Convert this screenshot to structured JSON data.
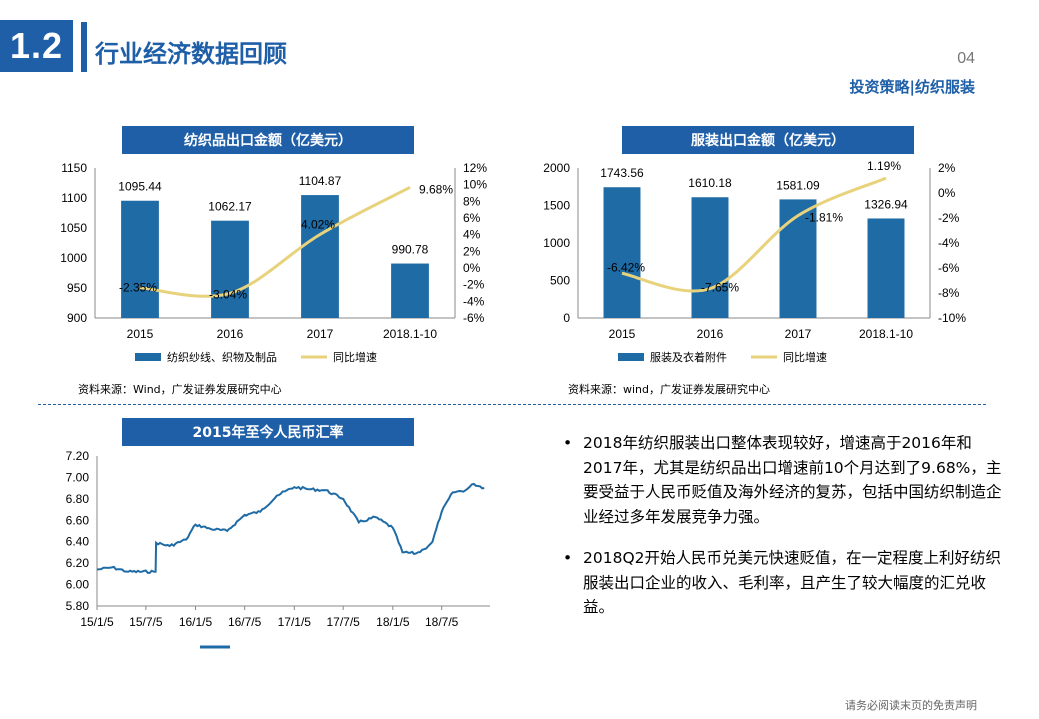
{
  "section": {
    "number": "1.2",
    "title": "行业经济数据回顾"
  },
  "page_number": "04",
  "header_subtitle": "投资策略|纺织服装",
  "charts": {
    "textile": {
      "title": "纺织品出口金额（亿美元）",
      "source": "资料来源：Wind，广发证券发展研究中心"
    },
    "apparel": {
      "title": "服装出口金额（亿美元）",
      "source": "资料来源：wind，广发证券发展研究中心"
    },
    "rmb": {
      "title": "2015年至今人民币汇率"
    }
  },
  "bullets": [
    "2018年纺织服装出口整体表现较好，增速高于2016年和2017年，尤其是纺织品出口增速前10个月达到了9.68%，主要受益于人民币贬值及海外经济的复苏，包括中国纺织制造企业经过多年发展竞争力强。",
    "2018Q2开始人民币兑美元快速贬值，在一定程度上利好纺织服装出口企业的收入、毛利率，且产生了较大幅度的汇兑收益。"
  ],
  "disclaimer": "请务必阅读末页的免责声明",
  "colors": {
    "brand": "#1f5fa8",
    "bar": "#1f6ba5",
    "line": "#e8d27c",
    "fx_line": "#1f6ba5"
  },
  "chart_data": [
    {
      "type": "bar",
      "title": "纺织品出口金额（亿美元）",
      "categories": [
        "2015",
        "2016",
        "2017",
        "2018.1-10"
      ],
      "series": [
        {
          "name": "纺织纱线、织物及制品",
          "values": [
            1095.44,
            1062.17,
            1104.87,
            990.78
          ],
          "labels": [
            "1095.44",
            "1062.17",
            "1104.87",
            "990.78"
          ]
        },
        {
          "name": "同比增速",
          "values": [
            -2.35,
            -3.04,
            4.02,
            9.68
          ],
          "labels": [
            "-2.35%",
            "-3.04%",
            "4.02%",
            "9.68%"
          ],
          "axis": "right",
          "line": true
        }
      ],
      "ylim": [
        900,
        1150
      ],
      "yticks": [
        "900",
        "950",
        "1000",
        "1050",
        "1100",
        "1150"
      ],
      "y2lim": [
        -6,
        12
      ],
      "y2ticks": [
        "-6%",
        "-4%",
        "-2%",
        "0%",
        "2%",
        "4%",
        "6%",
        "8%",
        "10%",
        "12%"
      ],
      "legend": "bottom"
    },
    {
      "type": "bar",
      "title": "服装出口金额（亿美元）",
      "categories": [
        "2015",
        "2016",
        "2017",
        "2018.1-10"
      ],
      "series": [
        {
          "name": "服装及衣着附件",
          "values": [
            1743.56,
            1610.18,
            1581.09,
            1326.94
          ],
          "labels": [
            "1743.56",
            "1610.18",
            "1581.09",
            "1326.94"
          ]
        },
        {
          "name": "同比增速",
          "values": [
            -6.42,
            -7.65,
            -1.81,
            1.19
          ],
          "labels": [
            "-6.42%",
            "-7.65%",
            "-1.81%",
            "1.19%"
          ],
          "axis": "right",
          "line": true
        }
      ],
      "ylim": [
        0,
        2000
      ],
      "yticks": [
        "0",
        "500",
        "1000",
        "1500",
        "2000"
      ],
      "y2lim": [
        -10,
        2
      ],
      "y2ticks": [
        "-10%",
        "-8%",
        "-6%",
        "-4%",
        "-2%",
        "0%",
        "2%"
      ],
      "legend": "bottom"
    },
    {
      "type": "line",
      "title": "2015年至今人民币汇率",
      "ylim": [
        5.8,
        7.2
      ],
      "yticks": [
        "5.80",
        "6.00",
        "6.20",
        "6.40",
        "6.60",
        "6.80",
        "7.00",
        "7.20"
      ],
      "xticks": [
        "15/1/5",
        "15/7/5",
        "16/1/5",
        "16/7/5",
        "17/1/5",
        "17/7/5",
        "18/1/5",
        "18/7/5"
      ],
      "series": [
        {
          "x": [
            "15/1/5",
            "15/3/1",
            "15/5/1",
            "15/8/10",
            "15/8/12",
            "15/10/1",
            "15/12/1",
            "16/1/5",
            "16/3/1",
            "16/5/1",
            "16/7/5",
            "16/9/1",
            "16/11/1",
            "17/1/5",
            "17/3/1",
            "17/5/1",
            "17/7/5",
            "17/9/1",
            "17/11/1",
            "18/1/5",
            "18/2/10",
            "18/4/1",
            "18/5/1",
            "18/6/1",
            "18/7/5",
            "18/8/15",
            "18/10/1",
            "18/11/1",
            "18/12/10"
          ],
          "y": [
            6.14,
            6.16,
            6.12,
            6.12,
            6.39,
            6.36,
            6.42,
            6.56,
            6.52,
            6.5,
            6.65,
            6.68,
            6.83,
            6.91,
            6.89,
            6.88,
            6.8,
            6.58,
            6.63,
            6.53,
            6.3,
            6.29,
            6.33,
            6.4,
            6.68,
            6.86,
            6.88,
            6.94,
            6.9
          ]
        }
      ]
    }
  ]
}
